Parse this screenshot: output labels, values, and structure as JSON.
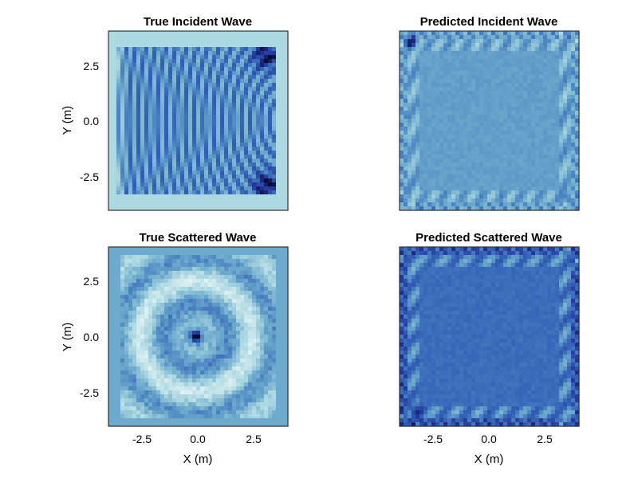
{
  "colors": {
    "background": "#ffffff",
    "frame": "#333333",
    "colormap": [
      "#0b0b35",
      "#23359a",
      "#3567b8",
      "#67a5cb",
      "#a9d6e0",
      "#e2f3f5"
    ]
  },
  "chart_data": [
    {
      "type": "heatmap",
      "title": "True Incident Wave",
      "xlabel": "",
      "ylabel": "Y (m)",
      "xlim": [
        -4,
        4
      ],
      "ylim": [
        -4,
        4
      ],
      "xticks": [],
      "yticks": [
        "2.5",
        "0.0",
        "-2.5"
      ],
      "grid": false,
      "field": "incident-true"
    },
    {
      "type": "heatmap",
      "title": "Predicted Incident Wave",
      "xlabel": "",
      "ylabel": "",
      "xlim": [
        -4,
        4
      ],
      "ylim": [
        -4,
        4
      ],
      "xticks": [],
      "yticks": [],
      "grid": false,
      "field": "incident-predicted"
    },
    {
      "type": "heatmap",
      "title": "True Scattered Wave",
      "xlabel": "X (m)",
      "ylabel": "Y (m)",
      "xlim": [
        -4,
        4
      ],
      "ylim": [
        -4,
        4
      ],
      "xticks": [
        "-2.5",
        "0.0",
        "2.5"
      ],
      "yticks": [
        "2.5",
        "0.0",
        "-2.5"
      ],
      "grid": false,
      "field": "scattered-true"
    },
    {
      "type": "heatmap",
      "title": "Predicted Scattered Wave",
      "xlabel": "X (m)",
      "ylabel": "",
      "xlim": [
        -4,
        4
      ],
      "ylim": [
        -4,
        4
      ],
      "xticks": [
        "-2.5",
        "0.0",
        "2.5"
      ],
      "yticks": [],
      "grid": false,
      "field": "scattered-predicted"
    }
  ]
}
